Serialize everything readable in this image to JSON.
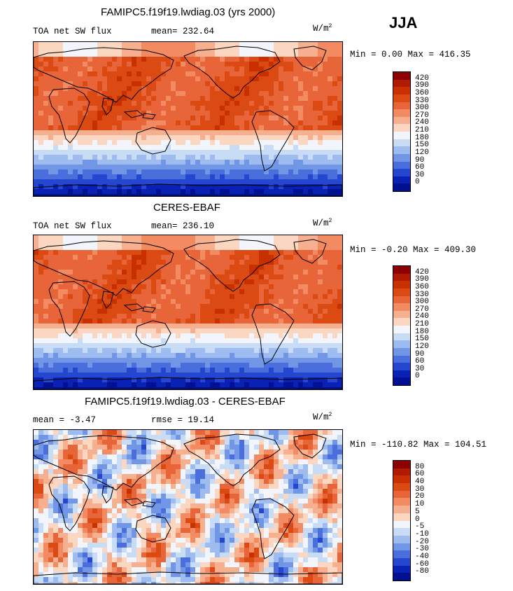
{
  "season": "JJA",
  "panels": [
    {
      "title": "FAMIPC5.f19f19.lwdiag.03 (yrs 2000)",
      "left_label": "TOA net SW flux",
      "stat_label": "mean= 232.64",
      "units_base": "W/m",
      "units_exp": "2",
      "minmax": "Min =   0.00 Max = 416.35",
      "ticks": [
        "420",
        "390",
        "360",
        "330",
        "300",
        "270",
        "240",
        "210",
        "180",
        "150",
        "120",
        "90",
        "60",
        "30",
        "0"
      ],
      "colors": [
        "#8b0000",
        "#b01a00",
        "#c83000",
        "#dc4a14",
        "#e8653a",
        "#f28a62",
        "#f7b08f",
        "#fbd6c0",
        "#f2f6fc",
        "#c9dcf6",
        "#9ebcef",
        "#7196e6",
        "#4a6fdc",
        "#2546cf",
        "#0a22b4",
        "#001090"
      ],
      "kind": "absolute"
    },
    {
      "title": "CERES-EBAF",
      "left_label": "TOA net SW flux",
      "stat_label": "mean= 236.10",
      "units_base": "W/m",
      "units_exp": "2",
      "minmax": "Min =  -0.20 Max = 409.30",
      "ticks": [
        "420",
        "390",
        "360",
        "330",
        "300",
        "270",
        "240",
        "210",
        "180",
        "150",
        "120",
        "90",
        "60",
        "30",
        "0"
      ],
      "colors": [
        "#8b0000",
        "#b01a00",
        "#c83000",
        "#dc4a14",
        "#e8653a",
        "#f28a62",
        "#f7b08f",
        "#fbd6c0",
        "#f2f6fc",
        "#c9dcf6",
        "#9ebcef",
        "#7196e6",
        "#4a6fdc",
        "#2546cf",
        "#0a22b4",
        "#001090"
      ],
      "kind": "absolute"
    },
    {
      "title": "FAMIPC5.f19f19.lwdiag.03 - CERES-EBAF",
      "left_label": "mean =   -3.47",
      "stat_label": "rmse =   19.14",
      "units_base": "W/m",
      "units_exp": "2",
      "minmax": "Min = -110.82 Max = 104.51",
      "ticks": [
        "80",
        "60",
        "40",
        "30",
        "20",
        "10",
        "5",
        "0",
        "-5",
        "-10",
        "-20",
        "-30",
        "-40",
        "-60",
        "-80"
      ],
      "colors": [
        "#8b0000",
        "#b01a00",
        "#c83000",
        "#dc4a14",
        "#e8653a",
        "#f28a62",
        "#f7b08f",
        "#fbd6c0",
        "#f2f6fc",
        "#c9dcf6",
        "#9ebcef",
        "#7196e6",
        "#4a6fdc",
        "#2546cf",
        "#0a22b4",
        "#001090"
      ],
      "kind": "difference"
    }
  ],
  "chart_data": [
    {
      "type": "heatmap",
      "title": "FAMIPC5.f19f19.lwdiag.03 (yrs 2000)",
      "variable": "TOA net SW flux",
      "mean": 232.64,
      "min": 0.0,
      "max": 416.35,
      "contour_levels": [
        0,
        30,
        60,
        90,
        120,
        150,
        180,
        210,
        240,
        270,
        300,
        330,
        360,
        390,
        420
      ]
    },
    {
      "type": "heatmap",
      "title": "CERES-EBAF",
      "variable": "TOA net SW flux",
      "mean": 236.1,
      "min": -0.2,
      "max": 409.3,
      "contour_levels": [
        0,
        30,
        60,
        90,
        120,
        150,
        180,
        210,
        240,
        270,
        300,
        330,
        360,
        390,
        420
      ]
    },
    {
      "type": "heatmap",
      "title": "FAMIPC5.f19f19.lwdiag.03 - CERES-EBAF",
      "mean": -3.47,
      "rmse": 19.14,
      "min": -110.82,
      "max": 104.51,
      "contour_levels": [
        -80,
        -60,
        -40,
        -30,
        -20,
        -10,
        -5,
        0,
        5,
        10,
        20,
        30,
        40,
        60,
        80
      ]
    }
  ]
}
